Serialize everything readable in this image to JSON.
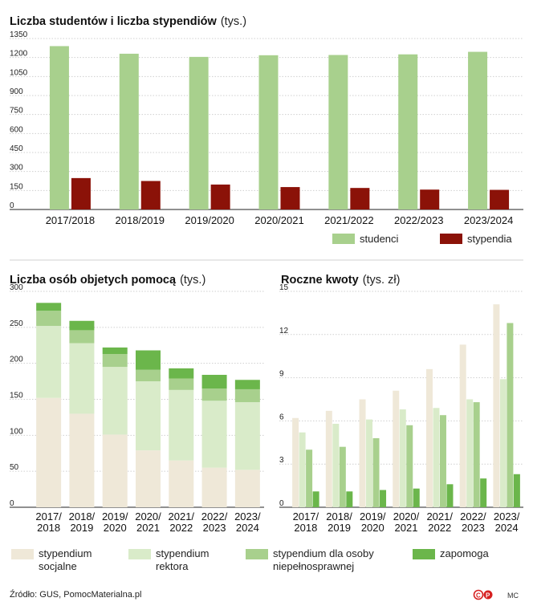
{
  "chart_data": [
    {
      "type": "bar",
      "title": "Liczba studentów i liczba stypendiów",
      "unit": "(tys.)",
      "categories": [
        "2017/2018",
        "2018/2019",
        "2019/2020",
        "2020/2021",
        "2021/2022",
        "2022/2023",
        "2023/2024"
      ],
      "series": [
        {
          "name": "studenci",
          "color": "#a8d08d",
          "values": [
            1290,
            1230,
            1205,
            1218,
            1220,
            1225,
            1245
          ]
        },
        {
          "name": "stypendia",
          "color": "#8b1208",
          "values": [
            248,
            225,
            197,
            177,
            170,
            157,
            155
          ]
        }
      ],
      "yticks": [
        "0",
        "150",
        "300",
        "450",
        "600",
        "750",
        "900",
        "1050",
        "1200",
        "1350"
      ],
      "ylim": [
        0,
        1350
      ]
    },
    {
      "type": "bar",
      "stacked": true,
      "title": "Liczba osób objetych pomocą",
      "unit": "(tys.)",
      "categories": [
        "2017/\n2018",
        "2018/\n2019",
        "2019/\n2020",
        "2020/\n2021",
        "2021/\n2022",
        "2022/\n2023",
        "2023/\n2024"
      ],
      "series": [
        {
          "name": "stypendium socjalne",
          "color": "#efe8d8",
          "values": [
            152,
            130,
            101,
            79,
            65,
            55,
            52
          ]
        },
        {
          "name": "stypendium rektora",
          "color": "#d9ebc9",
          "values": [
            100,
            98,
            94,
            96,
            98,
            93,
            94
          ]
        },
        {
          "name": "stypendium dla osoby niepełnosprawnej",
          "color": "#a8d08d",
          "values": [
            21,
            18,
            18,
            16,
            16,
            17,
            18
          ]
        },
        {
          "name": "zapomoga",
          "color": "#6bb64b",
          "values": [
            11,
            13,
            9,
            27,
            14,
            19,
            13
          ]
        }
      ],
      "yticks": [
        "0",
        "50",
        "100",
        "150",
        "200",
        "250",
        "300"
      ],
      "ylim": [
        0,
        300
      ]
    },
    {
      "type": "bar",
      "title": "Roczne kwoty",
      "unit": "(tys. zł)",
      "categories": [
        "2017/\n2018",
        "2018/\n2019",
        "2019/\n2020",
        "2020/\n2021",
        "2021/\n2022",
        "2022/\n2023",
        "2023/\n2024"
      ],
      "series": [
        {
          "name": "stypendium socjalne",
          "color": "#efe8d8",
          "values": [
            6.2,
            6.7,
            7.5,
            8.1,
            9.6,
            11.3,
            14.1
          ]
        },
        {
          "name": "stypendium rektora",
          "color": "#d9ebc9",
          "values": [
            5.2,
            5.8,
            6.1,
            6.8,
            6.9,
            7.5,
            8.9
          ]
        },
        {
          "name": "stypendium dla osoby niepełnosprawnej",
          "color": "#a8d08d",
          "values": [
            4.0,
            4.2,
            4.8,
            5.7,
            6.4,
            7.3,
            12.8
          ]
        },
        {
          "name": "zapomoga",
          "color": "#6bb64b",
          "values": [
            1.1,
            1.1,
            1.2,
            1.3,
            1.6,
            2.0,
            2.3
          ]
        }
      ],
      "yticks": [
        "0",
        "3",
        "6",
        "9",
        "12",
        "15"
      ],
      "ylim": [
        0,
        15
      ]
    }
  ],
  "legend_top": [
    {
      "label": "studenci",
      "color": "#a8d08d"
    },
    {
      "label": "stypendia",
      "color": "#8b1208"
    }
  ],
  "legend_bottom": [
    {
      "label": "stypendium\nsocjalne",
      "color": "#efe8d8"
    },
    {
      "label": "stypendium\nrektora",
      "color": "#d9ebc9"
    },
    {
      "label": "stypendium dla osoby\nniepełnosprawnej",
      "color": "#a8d08d"
    },
    {
      "label": "zapomoga",
      "color": "#6bb64b"
    }
  ],
  "footer": {
    "source": "Źródło: GUS, PomocMaterialna.pl",
    "signature": "MC"
  }
}
